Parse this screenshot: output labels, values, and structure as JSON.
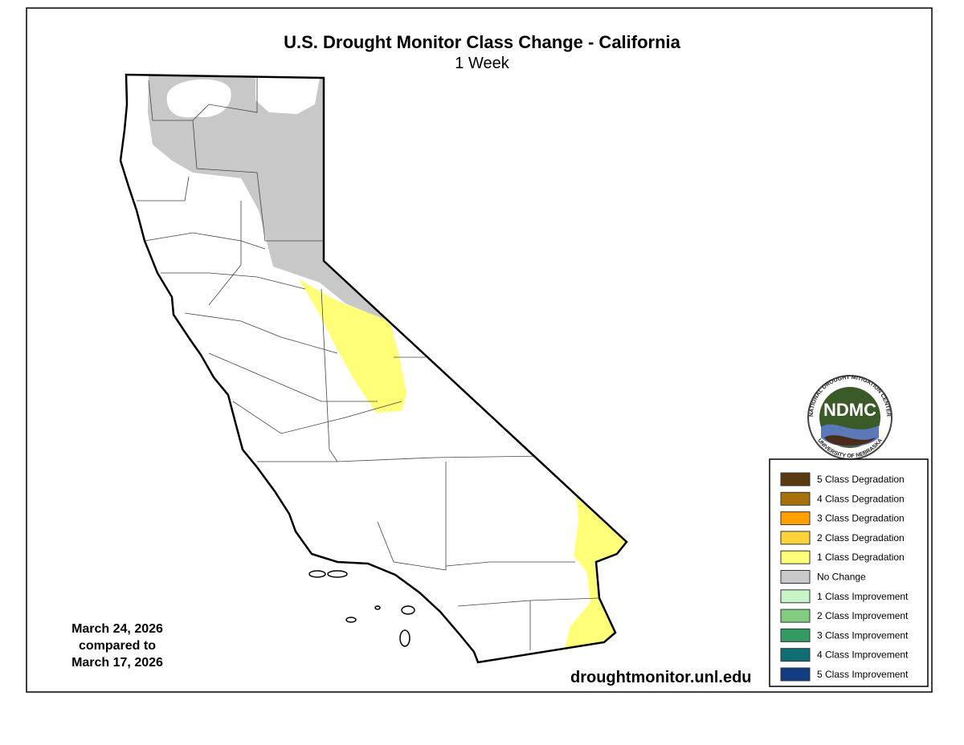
{
  "header": {
    "title": "U.S. Drought Monitor Class Change - California",
    "subtitle": "1 Week"
  },
  "legend": {
    "items": [
      {
        "label": "5 Class Degradation",
        "color": "#5a3a10"
      },
      {
        "label": "4 Class Degradation",
        "color": "#a8700a"
      },
      {
        "label": "3 Class Degradation",
        "color": "#ffa000"
      },
      {
        "label": "2 Class Degradation",
        "color": "#ffd23c"
      },
      {
        "label": "1 Class Degradation",
        "color": "#ffff78"
      },
      {
        "label": "No Change",
        "color": "#c8c8c8"
      },
      {
        "label": "1 Class Improvement",
        "color": "#c8f5c8"
      },
      {
        "label": "2 Class Improvement",
        "color": "#82cd82"
      },
      {
        "label": "3 Class Improvement",
        "color": "#329b64"
      },
      {
        "label": "4 Class Improvement",
        "color": "#0f6e73"
      },
      {
        "label": "5 Class Improvement",
        "color": "#143c82"
      }
    ]
  },
  "dates": {
    "lines": [
      "March 24, 2026",
      "compared to",
      "March 17, 2026"
    ]
  },
  "footer": {
    "url": "droughtmonitor.unl.edu"
  },
  "logo": {
    "name": "NDMC",
    "top_text": "NATIONAL DROUGHT MITIGATION CENTER",
    "bottom_text": "UNIVERSITY OF NEBRASKA"
  }
}
